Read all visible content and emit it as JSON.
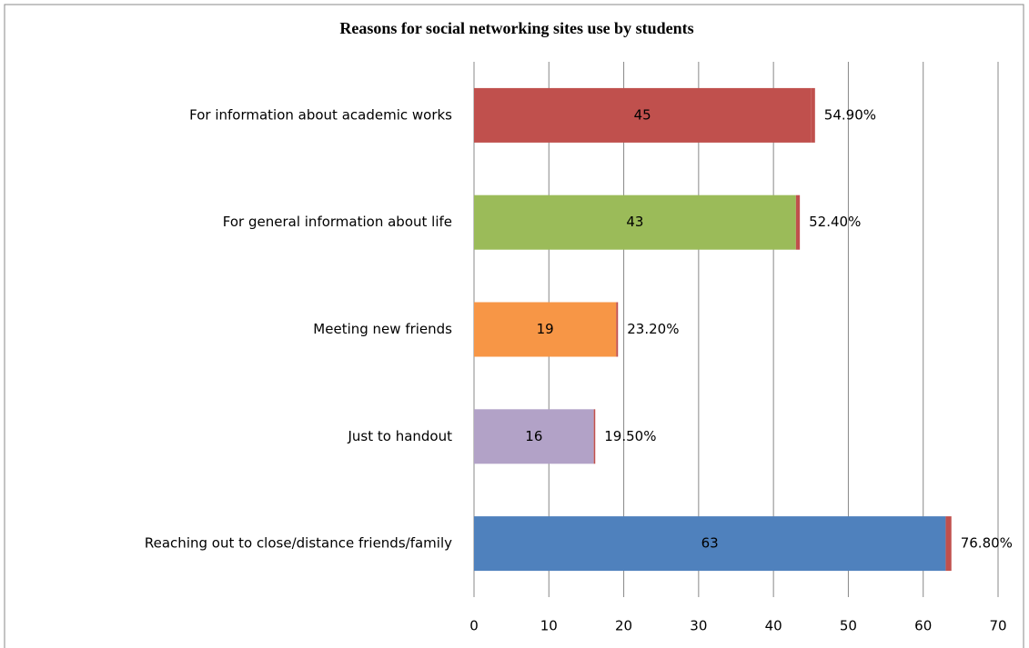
{
  "chart_data": {
    "type": "stacked-hbar",
    "title": "Reasons for social networking sites use by students",
    "categories": [
      "For information about academic works",
      "For general information about life",
      "Meeting new friends",
      "Just to handout",
      "Reaching out to close/distance friends/family"
    ],
    "series": [
      {
        "colors": [
          "#c0504d",
          "#9bbb59",
          "#f79646",
          "#b2a2c7",
          "#4f81bd"
        ],
        "values": [
          45,
          43,
          19,
          16,
          63
        ]
      },
      {
        "color": "#c0504d",
        "values": [
          0.549,
          0.524,
          0.232,
          0.195,
          0.768
        ],
        "value_labels": [
          "54.90%",
          "52.40%",
          "23.20%",
          "19.50%",
          "76.80%"
        ]
      }
    ],
    "xlim": [
      0,
      70
    ],
    "xticks": [
      0,
      10,
      20,
      30,
      40,
      50,
      60,
      70
    ],
    "grid": true
  }
}
